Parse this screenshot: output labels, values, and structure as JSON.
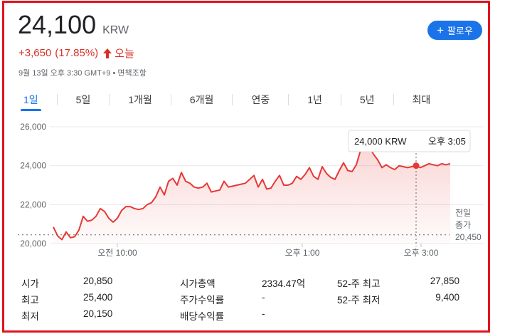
{
  "quote": {
    "price": "24,100",
    "currency": "KRW",
    "change": "+3,650",
    "change_pct": "(17.85%)",
    "period_label": "오늘",
    "timestamp": "9월 13일 오후 3:30 GMT+9 • 면책조항"
  },
  "follow_button": {
    "label": "팔로우",
    "icon": "plus-icon"
  },
  "tabs": [
    {
      "label": "1일",
      "active": true
    },
    {
      "label": "5일"
    },
    {
      "label": "1개월"
    },
    {
      "label": "6개월"
    },
    {
      "label": "연중"
    },
    {
      "label": "1년"
    },
    {
      "label": "5년"
    },
    {
      "label": "최대"
    }
  ],
  "chart_data": {
    "type": "area",
    "y_ticks": [
      "26,000",
      "24,000",
      "22,000",
      "20,000"
    ],
    "x_ticks": [
      "오전 10:00",
      "오후 1:00",
      "오후 3:00"
    ],
    "ylim": [
      20000,
      26000
    ],
    "tooltip": {
      "value": "24,000 KRW",
      "time": "오후 3:05"
    },
    "prev_close": {
      "label_line1": "전일",
      "label_line2": "종가",
      "value": "20,450"
    },
    "color": "#e53935",
    "x": [
      0,
      6,
      12,
      18,
      24,
      30,
      36,
      42,
      48,
      54,
      60,
      66,
      72,
      78,
      84,
      90,
      96,
      102,
      108,
      114,
      120,
      126,
      132,
      138,
      144,
      150,
      156,
      162,
      168,
      174,
      180,
      186,
      192,
      198,
      204,
      210,
      216,
      222,
      228,
      234,
      240,
      246,
      252,
      258,
      264,
      270,
      276,
      282,
      288,
      294,
      300,
      306,
      312,
      318,
      324,
      330,
      336,
      342,
      348,
      354,
      360,
      366,
      372,
      378,
      384,
      390,
      396,
      402,
      408,
      414,
      420,
      426,
      432,
      438,
      444,
      450,
      456,
      462,
      468,
      474,
      480,
      486,
      492,
      498,
      504,
      510,
      516,
      522,
      528,
      534,
      540,
      546,
      552,
      558
    ],
    "values": [
      20850,
      20400,
      20200,
      20600,
      20300,
      20350,
      20700,
      21400,
      21150,
      21200,
      21400,
      21800,
      21650,
      21300,
      21100,
      21300,
      21700,
      21900,
      21900,
      21800,
      21750,
      21800,
      22000,
      22100,
      22400,
      22900,
      22500,
      23200,
      23350,
      23000,
      23650,
      23200,
      23100,
      22900,
      22850,
      22900,
      23100,
      22650,
      22700,
      22750,
      23200,
      22900,
      22950,
      23000,
      23050,
      23100,
      23300,
      23500,
      22900,
      23300,
      22800,
      22850,
      23200,
      23500,
      23000,
      23000,
      23100,
      23450,
      23300,
      23550,
      23900,
      23450,
      23300,
      23950,
      23600,
      23400,
      23300,
      23750,
      24150,
      23750,
      23700,
      24050,
      24800,
      25400,
      25000,
      24600,
      24300,
      23900,
      24050,
      23900,
      23800,
      24000,
      23950,
      23900,
      23950,
      24000,
      23900,
      24000,
      24100,
      24050,
      24000,
      24100,
      24050,
      24100
    ]
  },
  "stats": {
    "col1": [
      {
        "label": "시가",
        "value": "20,850"
      },
      {
        "label": "최고",
        "value": "25,400"
      },
      {
        "label": "최저",
        "value": "20,150"
      }
    ],
    "col2": [
      {
        "label": "시가총액",
        "value": "2334.47억"
      },
      {
        "label": "주가수익률",
        "value": "-"
      },
      {
        "label": "배당수익률",
        "value": "-"
      }
    ],
    "col3": [
      {
        "label": "52-주 최고",
        "value": "27,850"
      },
      {
        "label": "52-주 최저",
        "value": "9,400"
      }
    ]
  }
}
